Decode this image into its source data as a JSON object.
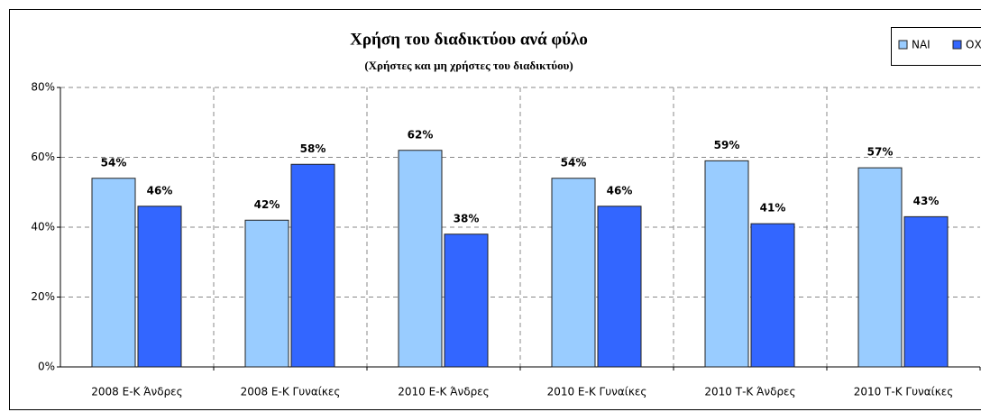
{
  "chart_data": {
    "type": "bar",
    "title": "Χρήση του διαδικτύου ανά φύλο",
    "subtitle": "(Χρήστες και μη χρήστες του διαδικτύου)",
    "categories": [
      "2008 Ε-Κ Άνδρες",
      "2008 Ε-Κ Γυναίκες",
      "2010 Ε-Κ Άνδρες",
      "2010 Ε-Κ Γυναίκες",
      "2010 Τ-Κ Άνδρες",
      "2010 Τ-Κ Γυναίκες"
    ],
    "series": [
      {
        "name": "ΝΑΙ",
        "color": "#99ccff",
        "values": [
          54,
          42,
          62,
          54,
          59,
          57
        ],
        "value_labels": [
          "54%",
          "42%",
          "62%",
          "54%",
          "59%",
          "57%"
        ]
      },
      {
        "name": "ΟΧΙ",
        "color": "#3366ff",
        "values": [
          46,
          58,
          38,
          46,
          41,
          43
        ],
        "value_labels": [
          "46%",
          "58%",
          "38%",
          "46%",
          "41%",
          "43%"
        ]
      }
    ],
    "ylim": [
      0,
      80
    ],
    "yticks": [
      {
        "value": 0,
        "label": "0%"
      },
      {
        "value": 20,
        "label": "20%"
      },
      {
        "value": 40,
        "label": "40%"
      },
      {
        "value": 60,
        "label": "60%"
      },
      {
        "value": 80,
        "label": "80%"
      }
    ],
    "grid": true,
    "legend": "top-right"
  }
}
